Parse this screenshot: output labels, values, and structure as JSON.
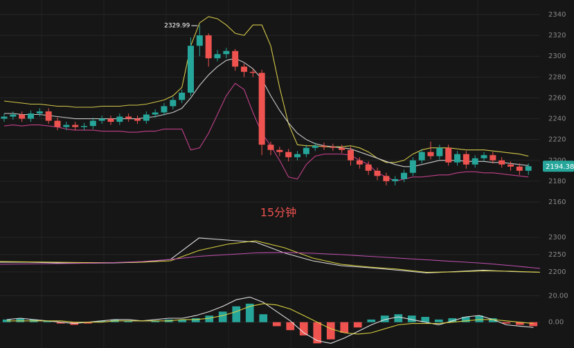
{
  "chart_data": [
    {
      "type": "candlestick",
      "annotation": "15分钟",
      "open": [
        2240,
        2242,
        2244,
        2240,
        2245,
        2247,
        2238,
        2232,
        2234,
        2232,
        2233,
        2238,
        2240,
        2237,
        2242,
        2240,
        2238,
        2244,
        2246,
        2252,
        2258,
        2265,
        2310,
        2320,
        2298,
        2302,
        2305,
        2290,
        2285,
        2284,
        2215,
        2210,
        2208,
        2203,
        2206,
        2212,
        2214,
        2213,
        2212,
        2210,
        2200,
        2196,
        2190,
        2185,
        2180,
        2182,
        2188,
        2200,
        2208,
        2204,
        2212,
        2198,
        2206,
        2196,
        2202,
        2205,
        2200,
        2196,
        2194,
        2190
      ],
      "high": [
        2245,
        2247,
        2247,
        2248,
        2250,
        2250,
        2241,
        2237,
        2237,
        2236,
        2241,
        2243,
        2243,
        2245,
        2245,
        2243,
        2247,
        2249,
        2255,
        2261,
        2268,
        2318,
        2329.99,
        2322,
        2306,
        2308,
        2307,
        2293,
        2288,
        2287,
        2218,
        2213,
        2211,
        2209,
        2215,
        2217,
        2217,
        2216,
        2215,
        2213,
        2203,
        2199,
        2193,
        2188,
        2185,
        2191,
        2203,
        2211,
        2218,
        2215,
        2215,
        2209,
        2209,
        2205,
        2208,
        2208,
        2203,
        2199,
        2197,
        2197
      ],
      "low": [
        2237,
        2239,
        2237,
        2237,
        2242,
        2235,
        2229,
        2229,
        2229,
        2229,
        2230,
        2235,
        2234,
        2234,
        2237,
        2235,
        2235,
        2241,
        2243,
        2249,
        2255,
        2262,
        2300,
        2290,
        2295,
        2298,
        2286,
        2280,
        2280,
        2205,
        2205,
        2204,
        2199,
        2200,
        2203,
        2209,
        2210,
        2209,
        2207,
        2195,
        2192,
        2186,
        2181,
        2176,
        2176,
        2179,
        2185,
        2197,
        2201,
        2201,
        2195,
        2195,
        2192,
        2193,
        2199,
        2197,
        2193,
        2190,
        2186,
        2186
      ],
      "close": [
        2242,
        2244,
        2240,
        2245,
        2247,
        2238,
        2232,
        2234,
        2232,
        2233,
        2238,
        2240,
        2237,
        2242,
        2240,
        2238,
        2244,
        2246,
        2252,
        2258,
        2265,
        2310,
        2320,
        2298,
        2302,
        2305,
        2290,
        2285,
        2284,
        2215,
        2210,
        2208,
        2203,
        2206,
        2212,
        2214,
        2213,
        2212,
        2210,
        2200,
        2196,
        2190,
        2185,
        2180,
        2182,
        2188,
        2200,
        2208,
        2204,
        2212,
        2198,
        2206,
        2196,
        2202,
        2205,
        2200,
        2196,
        2194,
        2190,
        2194.38
      ],
      "up_color": "#26a69a",
      "down_color": "#ef5350",
      "series": [
        {
          "color": "#d4c84a",
          "values": [
            2257,
            2256,
            2255,
            2254,
            2254,
            2253,
            2252,
            2252,
            2251,
            2251,
            2251,
            2252,
            2252,
            2252,
            2253,
            2253,
            2254,
            2256,
            2258,
            2262,
            2270,
            2310,
            2332,
            2338,
            2336,
            2330,
            2322,
            2320,
            2330,
            2330,
            2310,
            2270,
            2235,
            2215,
            2214,
            2214,
            2213,
            2213,
            2213,
            2214,
            2212,
            2208,
            2202,
            2198,
            2198,
            2200,
            2206,
            2210,
            2212,
            2212,
            2212,
            2211,
            2210,
            2210,
            2210,
            2209,
            2208,
            2207,
            2206,
            2204
          ]
        },
        {
          "color": "#cccccc",
          "values": [
            2245,
            2245,
            2244,
            2244,
            2244,
            2243,
            2242,
            2241,
            2240,
            2240,
            2240,
            2240,
            2240,
            2240,
            2240,
            2240,
            2241,
            2242,
            2244,
            2246,
            2250,
            2260,
            2272,
            2282,
            2290,
            2296,
            2298,
            2294,
            2288,
            2278,
            2262,
            2248,
            2236,
            2226,
            2220,
            2216,
            2214,
            2213,
            2212,
            2211,
            2208,
            2205,
            2202,
            2199,
            2196,
            2194,
            2194,
            2196,
            2198,
            2200,
            2200,
            2200,
            2199,
            2199,
            2199,
            2198,
            2198,
            2197,
            2196,
            2195
          ]
        },
        {
          "color": "#c2408a",
          "values": [
            2233,
            2234,
            2233,
            2234,
            2234,
            2233,
            2232,
            2230,
            2229,
            2229,
            2229,
            2228,
            2228,
            2228,
            2227,
            2227,
            2228,
            2228,
            2230,
            2230,
            2230,
            2210,
            2212,
            2226,
            2244,
            2262,
            2274,
            2268,
            2246,
            2226,
            2214,
            2200,
            2184,
            2182,
            2196,
            2204,
            2206,
            2206,
            2206,
            2205,
            2200,
            2196,
            2188,
            2184,
            2180,
            2182,
            2184,
            2184,
            2185,
            2186,
            2186,
            2188,
            2189,
            2189,
            2188,
            2188,
            2187,
            2186,
            2185,
            2184
          ]
        }
      ],
      "ylim": [
        2152,
        2348
      ],
      "yticks": [
        2160,
        2180,
        2200,
        2220,
        2240,
        2260,
        2280,
        2300,
        2320,
        2340
      ],
      "grid": true
    },
    {
      "type": "line",
      "series": [
        {
          "color": "#dddddd",
          "values": [
            2228,
            2228,
            2226,
            2225,
            2226,
            2228,
            2236,
            2298,
            2292,
            2286,
            2255,
            2232,
            2218,
            2212,
            2205,
            2197,
            2201,
            2205,
            2201,
            2199
          ]
        },
        {
          "color": "#d8d040",
          "values": [
            2230,
            2229,
            2228,
            2227,
            2227,
            2228,
            2232,
            2262,
            2280,
            2290,
            2270,
            2240,
            2222,
            2214,
            2208,
            2199,
            2200,
            2203,
            2202,
            2199
          ]
        },
        {
          "color": "#c050b0",
          "values": [
            2222,
            2223,
            2224,
            2225,
            2227,
            2230,
            2236,
            2245,
            2250,
            2255,
            2256,
            2254,
            2250,
            2245,
            2240,
            2235,
            2230,
            2225,
            2218,
            2210
          ]
        }
      ],
      "ylim": [
        2175,
        2320
      ],
      "yticks": [
        2200,
        2250,
        2300
      ],
      "grid": true
    },
    {
      "type": "macd",
      "values": [
        2,
        3,
        2,
        1,
        -1,
        -2,
        -1,
        1,
        2,
        1,
        0,
        1,
        2,
        2,
        3,
        5,
        8,
        12,
        14,
        6,
        -3,
        -6,
        -10,
        -16,
        -13,
        -8,
        -4,
        2,
        5,
        6,
        5,
        4,
        2,
        3,
        4,
        5,
        3,
        -1,
        -2,
        -3
      ],
      "up_color": "#26a69a",
      "down_color": "#ef5350",
      "series": [
        {
          "color": "#e0e0e0",
          "values": [
            2,
            3,
            2,
            1,
            0,
            -1,
            0,
            1,
            2,
            2,
            1,
            2,
            3,
            3,
            5,
            8,
            12,
            17,
            19,
            15,
            8,
            1,
            -8,
            -14,
            -16,
            -12,
            -7,
            -2,
            2,
            4,
            2,
            0,
            -2,
            1,
            4,
            5,
            2,
            -2,
            -3,
            -4
          ]
        },
        {
          "color": "#d8d040",
          "values": [
            1,
            1,
            1,
            1,
            1,
            0,
            0,
            0,
            1,
            1,
            1,
            1,
            1,
            2,
            2,
            3,
            5,
            8,
            12,
            14,
            13,
            10,
            5,
            0,
            -5,
            -8,
            -9,
            -8,
            -5,
            -2,
            -1,
            -1,
            -1,
            0,
            1,
            2,
            2,
            1,
            0,
            -1
          ]
        }
      ],
      "ylim": [
        -19,
        26
      ],
      "yticks": [
        {
          "value": 0,
          "label": "0.00"
        },
        {
          "value": 20,
          "label": "20.00"
        }
      ],
      "grid": true
    }
  ]
}
